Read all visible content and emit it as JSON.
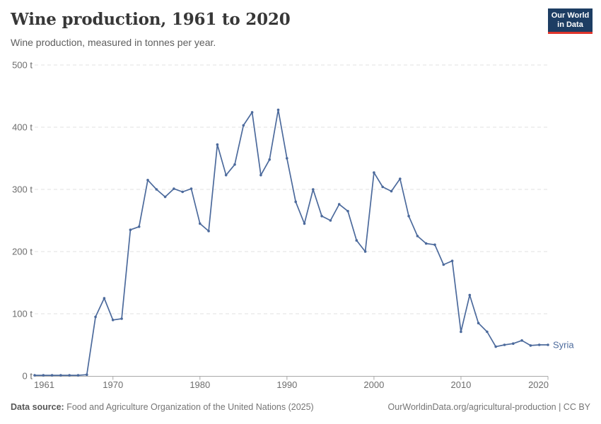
{
  "header": {
    "title": "Wine production, 1961 to 2020",
    "subtitle": "Wine production, measured in tonnes per year.",
    "logo": {
      "line1": "Our World",
      "line2": "in Data",
      "bg_color": "#1d3d63",
      "accent_color": "#e0352c"
    }
  },
  "chart_data": {
    "type": "line",
    "title": "Wine production, 1961 to 2020",
    "ylabel": "tonnes",
    "unit": "t",
    "xlim": [
      1961,
      2020
    ],
    "ylim": [
      0,
      500
    ],
    "grid": "horizontal-dashed",
    "legend_position": "end-of-line",
    "y_ticks": [
      0,
      100,
      200,
      300,
      400,
      500
    ],
    "y_tick_labels": [
      "0 t",
      "100 t",
      "200 t",
      "300 t",
      "400 t",
      "500 t"
    ],
    "x_ticks": [
      1961,
      1970,
      1980,
      1990,
      2000,
      2010,
      2020
    ],
    "x_tick_labels": [
      "1961",
      "1970",
      "1980",
      "1990",
      "2000",
      "2010",
      "2020"
    ],
    "series": [
      {
        "name": "Syria",
        "color": "#4C6A9C",
        "x": [
          1961,
          1962,
          1963,
          1964,
          1965,
          1966,
          1967,
          1968,
          1969,
          1970,
          1971,
          1972,
          1973,
          1974,
          1975,
          1976,
          1977,
          1978,
          1979,
          1980,
          1981,
          1982,
          1983,
          1984,
          1985,
          1986,
          1987,
          1988,
          1989,
          1990,
          1991,
          1992,
          1993,
          1994,
          1995,
          1996,
          1997,
          1998,
          1999,
          2000,
          2001,
          2002,
          2003,
          2004,
          2005,
          2006,
          2007,
          2008,
          2009,
          2010,
          2011,
          2012,
          2013,
          2014,
          2015,
          2016,
          2017,
          2018,
          2019,
          2020
        ],
        "values": [
          1,
          1,
          1,
          1,
          1,
          1,
          2,
          95,
          125,
          90,
          92,
          235,
          240,
          315,
          300,
          288,
          301,
          296,
          301,
          245,
          233,
          372,
          323,
          340,
          403,
          424,
          323,
          348,
          428,
          350,
          280,
          245,
          300,
          257,
          250,
          276,
          265,
          218,
          200,
          327,
          304,
          297,
          317,
          257,
          225,
          213,
          211,
          179,
          185,
          71,
          130,
          85,
          71,
          47,
          50,
          52,
          57,
          49,
          50,
          50
        ]
      }
    ],
    "colors": {
      "gridline": "#e2e2e2",
      "axis": "#a8a8a8",
      "tick_label": "#6e6e6e"
    }
  },
  "footer": {
    "source_label": "Data source:",
    "source_text": " Food and Agriculture Organization of the United Nations (2025)",
    "link_text": "OurWorldinData.org/agricultural-production | CC BY"
  }
}
